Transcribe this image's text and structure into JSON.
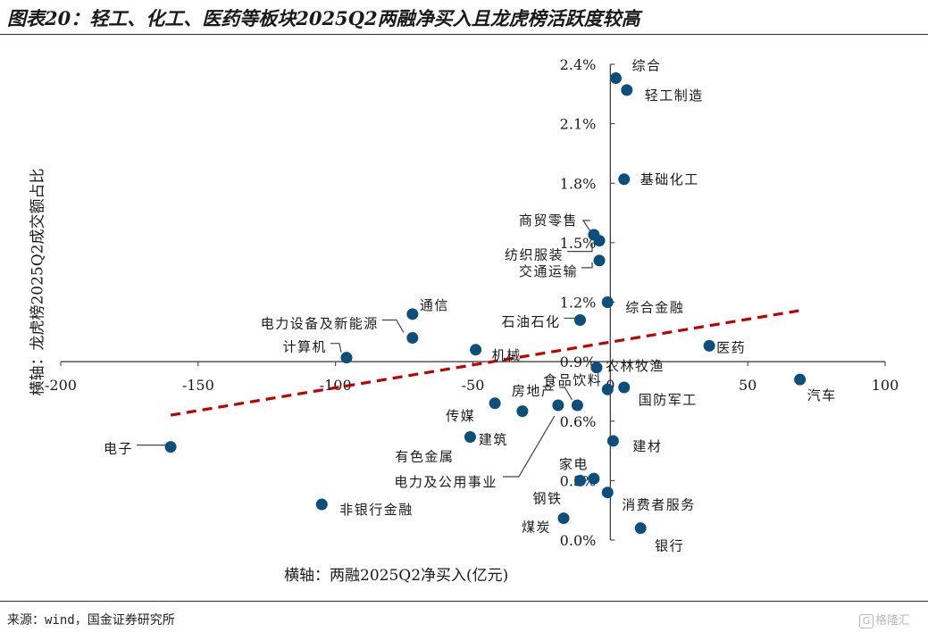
{
  "header": {
    "title": "图表20：轻工、化工、医药等板块2025Q2两融净买入且龙虎榜活跃度较高"
  },
  "footer": {
    "source": "来源：wind，国金证券研究所",
    "logo": "格隆汇"
  },
  "colors": {
    "points": "#0d4f7c",
    "trend": "#c00000",
    "axis": "#333333"
  },
  "chart_data": {
    "type": "scatter",
    "xlabel": "横轴：两融2025Q2净买入(亿元)",
    "ylabel": "横轴：龙虎榜2025Q2成交额占比",
    "xlim": [
      -200,
      100
    ],
    "ylim": [
      0.0,
      2.4
    ],
    "x_axis_crosses_y_at": 0.9,
    "y_axis_crosses_x_at": 0,
    "x_ticks": [
      -200,
      -150,
      -100,
      -50,
      0,
      50,
      100
    ],
    "x_tick_labels": [
      "-200",
      "-150",
      "-100",
      "-50",
      "0",
      "50",
      "100"
    ],
    "y_ticks": [
      0.0,
      0.3,
      0.6,
      0.9,
      1.2,
      1.5,
      1.8,
      2.1,
      2.4
    ],
    "y_tick_labels": [
      "0.0%",
      "0.3%",
      "0.6%",
      "0.9%",
      "1.2%",
      "1.5%",
      "1.8%",
      "2.1%",
      "2.4%"
    ],
    "trendline": {
      "style": "dashed",
      "points": [
        [
          -160,
          0.63
        ],
        [
          70,
          1.16
        ]
      ]
    },
    "points": [
      {
        "name": "综合",
        "x": 2,
        "y": 2.33
      },
      {
        "name": "轻工制造",
        "x": 6,
        "y": 2.27
      },
      {
        "name": "基础化工",
        "x": 5,
        "y": 1.82
      },
      {
        "name": "商贸零售",
        "x": -6,
        "y": 1.54
      },
      {
        "name": "纺织服装",
        "x": -4,
        "y": 1.51
      },
      {
        "name": "交通运输",
        "x": -4,
        "y": 1.41
      },
      {
        "name": "综合金融",
        "x": -1,
        "y": 1.2
      },
      {
        "name": "通信",
        "x": -72,
        "y": 1.14
      },
      {
        "name": "石油石化",
        "x": -11,
        "y": 1.11
      },
      {
        "name": "电力设备及新能源",
        "x": -72,
        "y": 1.02
      },
      {
        "name": "医药",
        "x": 36,
        "y": 0.98
      },
      {
        "name": "机械",
        "x": -49,
        "y": 0.96
      },
      {
        "name": "计算机",
        "x": -96,
        "y": 0.92
      },
      {
        "name": "农林牧渔",
        "x": -5,
        "y": 0.87
      },
      {
        "name": "汽车",
        "x": 69,
        "y": 0.81
      },
      {
        "name": "国防军工",
        "x": 5,
        "y": 0.77
      },
      {
        "name": "食品饮料",
        "x": -1,
        "y": 0.76
      },
      {
        "name": "房地产",
        "x": -12,
        "y": 0.68
      },
      {
        "name": "传媒",
        "x": -42,
        "y": 0.69
      },
      {
        "name": "电力及公用事业",
        "x": -19,
        "y": 0.68
      },
      {
        "name": "建筑",
        "x": -32,
        "y": 0.65
      },
      {
        "name": "有色金属",
        "x": -51,
        "y": 0.52
      },
      {
        "name": "建材",
        "x": 1,
        "y": 0.5
      },
      {
        "name": "电子",
        "x": -160,
        "y": 0.47
      },
      {
        "name": "家电",
        "x": -6,
        "y": 0.31
      },
      {
        "name": "钢铁",
        "x": -11,
        "y": 0.3
      },
      {
        "name": "消费者服务",
        "x": -1,
        "y": 0.24
      },
      {
        "name": "非银行金融",
        "x": -105,
        "y": 0.18
      },
      {
        "name": "煤炭",
        "x": -17,
        "y": 0.11
      },
      {
        "name": "银行",
        "x": 11,
        "y": 0.06
      }
    ]
  }
}
